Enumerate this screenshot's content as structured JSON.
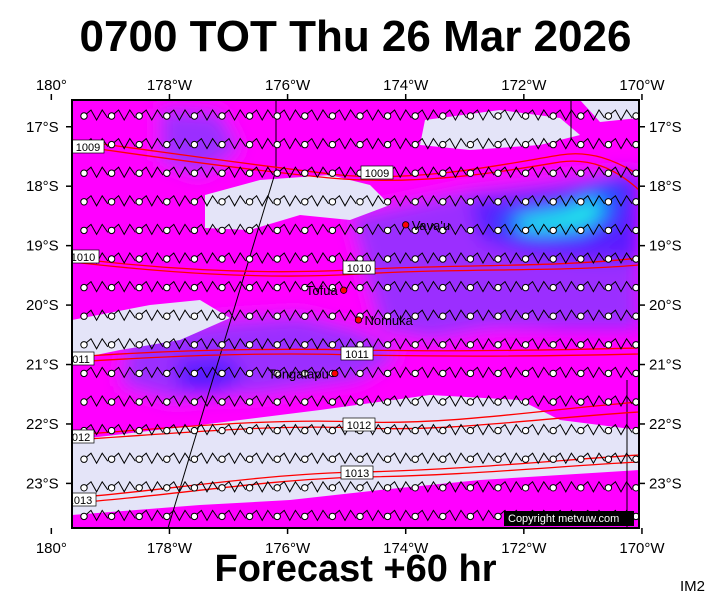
{
  "title": "0700 TOT Thu 26 Mar 2026",
  "subtitle": "Forecast +60 hr",
  "corner_code": "IM2",
  "copyright": "Copyright metvuw.com",
  "colors": {
    "background_field": "#e4e4f8",
    "precip_light": "#ff00ff",
    "precip_mid": "#9b2dff",
    "precip_heavy": "#5a1cff",
    "precip_extreme": "#1a4bff",
    "precip_peak": "#22e8e8",
    "isobar": "#ff0000",
    "wind_barb": "#000000",
    "place_marker": "#ff0000"
  },
  "longitude_ticks": [
    "180°",
    "178°W",
    "176°W",
    "174°W",
    "172°W",
    "170°W"
  ],
  "latitude_ticks": [
    "17°S",
    "18°S",
    "19°S",
    "20°S",
    "21°S",
    "22°S",
    "23°S"
  ],
  "places": [
    {
      "name": "Vava'u",
      "lon": -174.0,
      "lat": -18.65
    },
    {
      "name": "Tofua",
      "lon": -175.05,
      "lat": -19.75
    },
    {
      "name": "Nomuka",
      "lon": -174.8,
      "lat": -20.25
    },
    {
      "name": "Tongatapu",
      "lon": -175.2,
      "lat": -21.15
    }
  ],
  "isobars": [
    {
      "label": "1009",
      "lat": -17.4
    },
    {
      "label": "1009",
      "lat": -17.5
    },
    {
      "label": "1010",
      "lat": -19.1
    },
    {
      "label": "1010",
      "lat": -19.2
    },
    {
      "label": "1011",
      "lat": -20.7
    },
    {
      "label": "1011",
      "lat": -20.8
    },
    {
      "label": "1012",
      "lat": -21.95
    },
    {
      "label": "1012",
      "lat": -22.1
    },
    {
      "label": "1013",
      "lat": -23.1
    },
    {
      "label": "1013",
      "lat": -23.25
    }
  ]
}
